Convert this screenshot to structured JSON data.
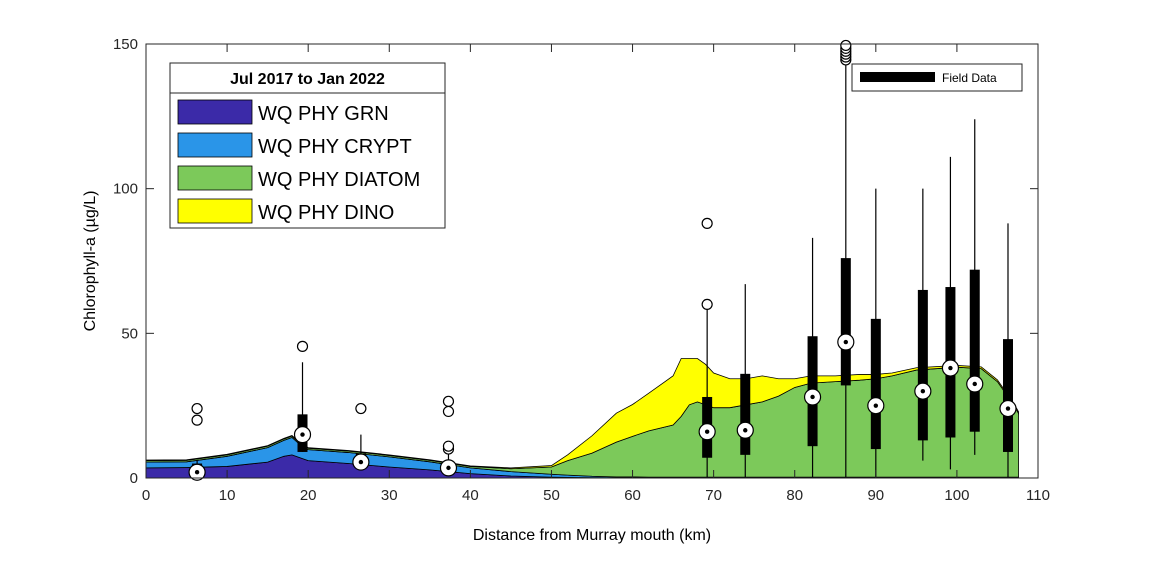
{
  "chart_data": {
    "type": "area",
    "xlabel": "Distance from Murray mouth (km)",
    "ylabel": "Chlorophyll-a  (µg/L)",
    "xlim": [
      0,
      110
    ],
    "ylim": [
      0,
      150
    ],
    "xticks": [
      0,
      10,
      20,
      30,
      40,
      50,
      60,
      70,
      80,
      90,
      100,
      110
    ],
    "yticks": [
      0,
      50,
      100,
      150
    ],
    "grid": false,
    "legend_title": "Jul 2017 to Jan 2022",
    "legend_position": "top-left",
    "x": [
      0,
      5,
      10,
      15,
      17,
      18,
      19,
      20,
      25,
      30,
      35,
      40,
      45,
      50,
      52,
      55,
      58,
      60,
      62,
      65,
      66,
      67,
      68,
      69,
      70,
      72,
      74,
      76,
      78,
      80,
      82,
      85,
      88,
      90,
      92,
      95,
      100,
      103,
      105,
      106,
      107,
      107.6
    ],
    "series": [
      {
        "name": "WQ PHY GRN",
        "color": "#3b2aa8",
        "values": [
          3.5,
          3.6,
          4.0,
          5.5,
          7.5,
          8.0,
          7.0,
          6.0,
          5.0,
          3.8,
          2.8,
          1.5,
          0.7,
          0.3,
          0.2,
          0.1,
          0.1,
          0.1,
          0.1,
          0.1,
          0.1,
          0.1,
          0.1,
          0.1,
          0.1,
          0.1,
          0.1,
          0.1,
          0.1,
          0.1,
          0.1,
          0.1,
          0.1,
          0.1,
          0.1,
          0.1,
          0.1,
          0.1,
          0.1,
          0.1,
          0.1,
          0.1
        ]
      },
      {
        "name": "WQ PHY CRYPT",
        "color": "#2a95e8",
        "values": [
          2.0,
          2.0,
          3.5,
          5.0,
          5.5,
          6.0,
          4.5,
          3.8,
          3.8,
          3.5,
          2.8,
          2.0,
          1.5,
          1.0,
          0.8,
          0.5,
          0.3,
          0.3,
          0.2,
          0.2,
          0.2,
          0.2,
          0.2,
          0.2,
          0.2,
          0.2,
          0.2,
          0.2,
          0.2,
          0.2,
          0.2,
          0.2,
          0.2,
          0.2,
          0.2,
          0.2,
          0.2,
          0.2,
          0.2,
          0.2,
          0.2,
          0.2
        ]
      },
      {
        "name": "WQ PHY DIATOM",
        "color": "#7cc95a",
        "values": [
          0.5,
          0.5,
          0.5,
          0.5,
          0.5,
          0.5,
          0.5,
          0.5,
          0.5,
          0.5,
          0.5,
          0.5,
          1.0,
          2.5,
          5.0,
          8.0,
          12.0,
          14.0,
          16.0,
          18.0,
          21.0,
          25.0,
          26.0,
          25.0,
          24.0,
          24.0,
          25.0,
          26.0,
          28.0,
          31.0,
          32.5,
          33.0,
          33.5,
          34.0,
          35.0,
          37.0,
          38.0,
          37.5,
          33.0,
          29.0,
          25.0,
          22.0
        ]
      },
      {
        "name": "WQ PHY DINO",
        "color": "#ffff00",
        "values": [
          0.2,
          0.2,
          0.2,
          0.2,
          0.2,
          0.2,
          0.2,
          0.2,
          0.2,
          0.2,
          0.2,
          0.2,
          0.3,
          0.5,
          2.0,
          6.0,
          10.0,
          11.0,
          13.0,
          17.0,
          20.0,
          16.0,
          15.0,
          14.0,
          12.0,
          10.0,
          9.0,
          9.0,
          6.0,
          3.0,
          2.5,
          2.0,
          2.0,
          1.5,
          1.0,
          0.8,
          0.6,
          0.6,
          0.6,
          0.6,
          0.6,
          0.6
        ]
      }
    ],
    "field_data": {
      "name": "Field Data",
      "boxes": [
        {
          "x": 6.3,
          "q1": 1.0,
          "median": 2.0,
          "q3": 5.0,
          "whisker_low": 0.0,
          "whisker_high": 6.0,
          "outliers": [
            20,
            24
          ]
        },
        {
          "x": 19.3,
          "q1": 9.0,
          "median": 15.0,
          "q3": 22.0,
          "whisker_low": 9.0,
          "whisker_high": 40.0,
          "outliers": [
            45.5
          ]
        },
        {
          "x": 26.5,
          "q1": 4.0,
          "median": 5.5,
          "q3": 8.5,
          "whisker_low": 3.0,
          "whisker_high": 15.0,
          "outliers": [
            24
          ]
        },
        {
          "x": 37.3,
          "q1": 2.5,
          "median": 3.5,
          "q3": 5.5,
          "whisker_low": 1.0,
          "whisker_high": 9.0,
          "outliers": [
            10,
            11,
            23,
            26.5
          ]
        },
        {
          "x": 69.2,
          "q1": 7.0,
          "median": 16.0,
          "q3": 28.0,
          "whisker_low": 0.0,
          "whisker_high": 60.0,
          "outliers": [
            60,
            88
          ]
        },
        {
          "x": 73.9,
          "q1": 8.0,
          "median": 16.5,
          "q3": 36.0,
          "whisker_low": 0.0,
          "whisker_high": 67.0,
          "outliers": []
        },
        {
          "x": 82.2,
          "q1": 11.0,
          "median": 28.0,
          "q3": 49.0,
          "whisker_low": 0.0,
          "whisker_high": 83.0,
          "outliers": []
        },
        {
          "x": 86.3,
          "q1": 32.0,
          "median": 47.0,
          "q3": 76.0,
          "whisker_low": 0.0,
          "whisker_high": 144.0,
          "outliers": [
            144.5,
            145.5,
            146.5,
            147.5,
            148.5,
            149.5
          ]
        },
        {
          "x": 90.0,
          "q1": 10.0,
          "median": 25.0,
          "q3": 55.0,
          "whisker_low": 0.0,
          "whisker_high": 100.0,
          "outliers": []
        },
        {
          "x": 95.8,
          "q1": 13.0,
          "median": 30.0,
          "q3": 65.0,
          "whisker_low": 6.0,
          "whisker_high": 100.0,
          "outliers": []
        },
        {
          "x": 99.2,
          "q1": 14.0,
          "median": 38.0,
          "q3": 66.0,
          "whisker_low": 3.0,
          "whisker_high": 111.0,
          "outliers": []
        },
        {
          "x": 102.2,
          "q1": 16.0,
          "median": 32.5,
          "q3": 72.0,
          "whisker_low": 8.0,
          "whisker_high": 124.0,
          "outliers": []
        },
        {
          "x": 106.3,
          "q1": 9.0,
          "median": 24.0,
          "q3": 48.0,
          "whisker_low": 0.0,
          "whisker_high": 88.0,
          "outliers": []
        }
      ]
    }
  }
}
